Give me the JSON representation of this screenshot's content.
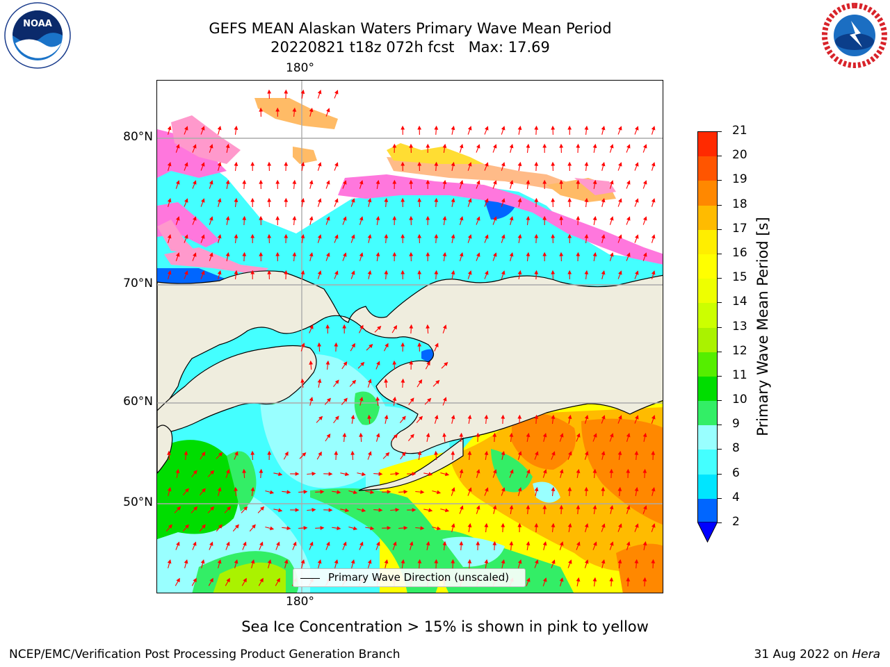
{
  "header": {
    "title_line1": "GEFS MEAN Alaskan Waters Primary Wave Mean Period",
    "title_line2": "20220821 t18z 072h fcst   Max: 17.69"
  },
  "logos": {
    "left": {
      "name": "noaa-logo",
      "text": "NOAA",
      "ring_text": "NATIONAL OCEANIC AND ATMOSPHERIC ADMINISTRATION · U.S. DEPARTMENT OF COMMERCE"
    },
    "right": {
      "name": "nws-logo",
      "ring_text": "NATIONAL WEATHER SERVICE"
    }
  },
  "map": {
    "lon_label_top": "180°",
    "lon_label_bottom": "180°",
    "lat_labels": [
      "80°N",
      "70°N",
      "60°N",
      "50°N"
    ],
    "legend_label": "Primary Wave Direction (unscaled)",
    "colors": {
      "land": "#efedde",
      "coast": "#000000",
      "grid": "#aaaaaa",
      "arrow": "#ff0000"
    }
  },
  "colorbar": {
    "label": "Primary Wave Mean Period [s]",
    "ticks": [
      "2",
      "4",
      "6",
      "8",
      "9",
      "10",
      "11",
      "12",
      "13",
      "14",
      "15",
      "16",
      "17",
      "18",
      "19",
      "20",
      "21"
    ],
    "colors": [
      "#0066ff",
      "#00e5ff",
      "#44ffff",
      "#99ffff",
      "#33ee66",
      "#00dd00",
      "#55ee00",
      "#aaf200",
      "#ccff00",
      "#eeff00",
      "#ffff00",
      "#ffee00",
      "#ffbb00",
      "#ff8800",
      "#ff5500",
      "#ff2a00"
    ],
    "extend_min_color": "#0000ff"
  },
  "note": "Sea Ice Concentration > 15% is shown in pink to yellow",
  "footer": {
    "left": "NCEP/EMC/Verification Post Processing Product Generation Branch",
    "right_date": "31 Aug 2022 on ",
    "right_machine": "Hera"
  }
}
